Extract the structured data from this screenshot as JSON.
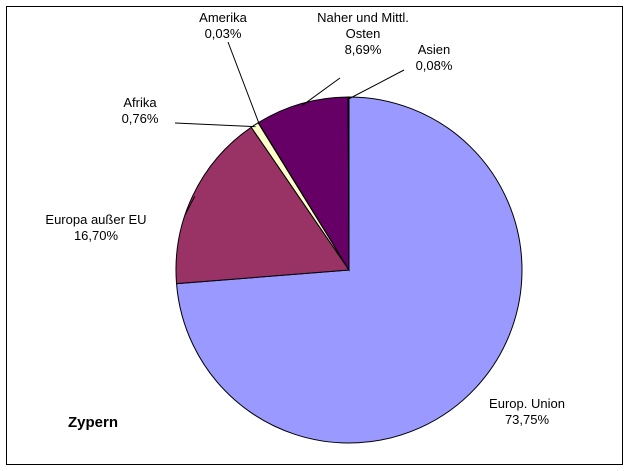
{
  "chart_data": {
    "type": "pie",
    "title": "Zypern",
    "categories": [
      "Europ. Union",
      "Europa außer EU",
      "Afrika",
      "Amerika",
      "Naher und Mittl. Osten",
      "Asien"
    ],
    "values": [
      73.75,
      16.7,
      0.76,
      0.03,
      8.69,
      0.08
    ],
    "value_labels": [
      "73,75%",
      "16,70%",
      "0,76%",
      "0,03%",
      "8,69%",
      "0,08%"
    ],
    "colors": [
      "#9999ff",
      "#993366",
      "#ffffcc",
      "#ccffcc",
      "#660066",
      "#ccffff"
    ]
  }
}
